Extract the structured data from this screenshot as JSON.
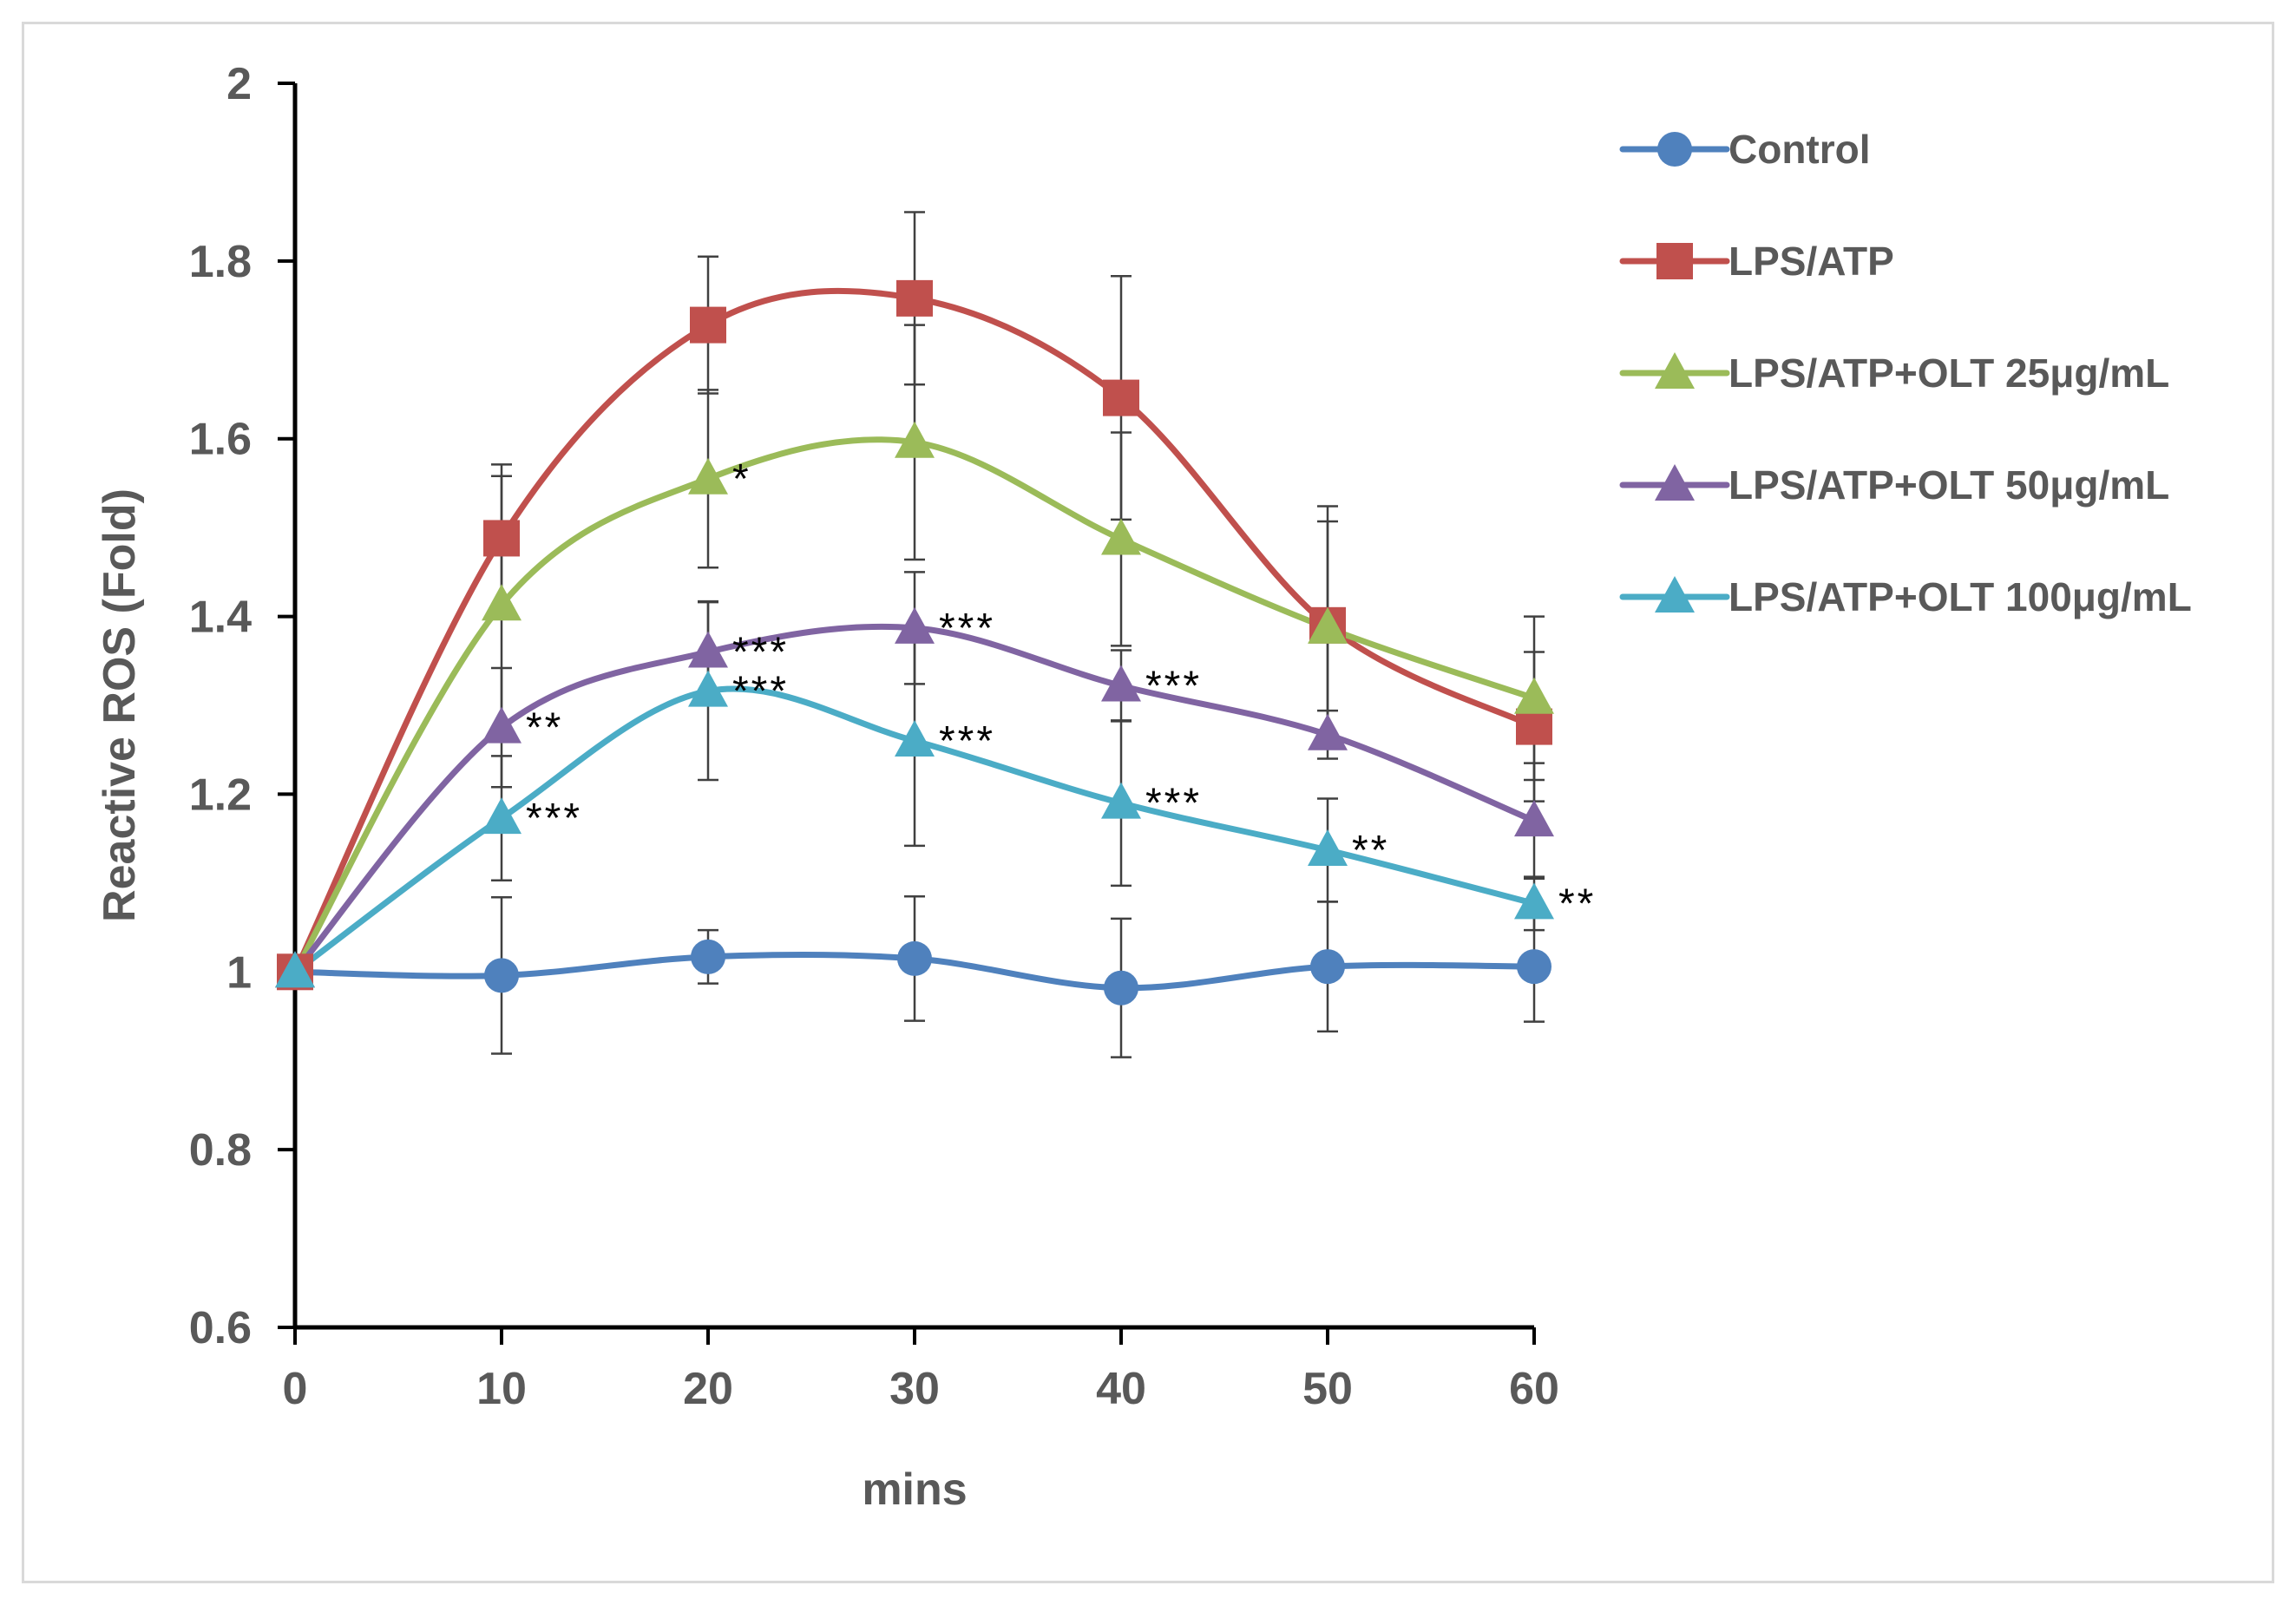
{
  "chart_data": {
    "type": "line",
    "title": "",
    "xlabel": "mins",
    "ylabel": "Reactive ROS (Fold)",
    "x": [
      0,
      10,
      20,
      30,
      40,
      50,
      60
    ],
    "xlim": [
      0,
      60
    ],
    "ylim": [
      0.6,
      2
    ],
    "yticks": [
      0.6,
      0.8,
      1,
      1.2,
      1.4,
      1.6,
      1.8,
      2
    ],
    "ytick_labels": [
      "0.6",
      "0.8",
      "1",
      "1.2",
      "1.4",
      "1.6",
      "1.8",
      "2"
    ],
    "xtick_labels": [
      "0",
      "10",
      "20",
      "30",
      "40",
      "50",
      "60"
    ],
    "grid": false,
    "legend_position": "right",
    "series": [
      {
        "name": "Control",
        "color": "#4f81bd",
        "marker": "circle",
        "values": [
          1.0,
          0.996,
          1.017,
          1.015,
          0.982,
          1.006,
          1.006
        ],
        "errors": [
          0,
          0.088,
          0.03,
          0.07,
          0.078,
          0.073,
          0.062
        ],
        "significance": [
          "",
          "",
          "",
          "",
          "",
          "",
          ""
        ]
      },
      {
        "name": "LPS/ATP",
        "color": "#c0504d",
        "marker": "square",
        "values": [
          1.0,
          1.488,
          1.728,
          1.758,
          1.646,
          1.39,
          1.276
        ],
        "errors": [
          0,
          0.083,
          0.077,
          0.097,
          0.137,
          0.134,
          0.084
        ],
        "significance": [
          "",
          "",
          "",
          "",
          "",
          "",
          ""
        ]
      },
      {
        "name": "LPS/ATP+OLT 25μg/mL",
        "color": "#9bbb59",
        "marker": "triangle",
        "values": [
          1.0,
          1.413,
          1.555,
          1.596,
          1.487,
          1.387,
          1.308
        ],
        "errors": [
          0,
          0.145,
          0.1,
          0.132,
          0.12,
          0.12,
          0.092
        ],
        "significance": [
          "",
          "",
          "*",
          "",
          "",
          "",
          ""
        ]
      },
      {
        "name": "LPS/ATP+OLT 50μg/mL",
        "color": "#8064a2",
        "marker": "triangle",
        "values": [
          1.0,
          1.275,
          1.36,
          1.387,
          1.322,
          1.267,
          1.17
        ],
        "errors": [
          0,
          0.067,
          0.057,
          0.063,
          0.04,
          0.027,
          0.065
        ],
        "significance": [
          "",
          "**",
          "***",
          "***",
          "***",
          "",
          ""
        ]
      },
      {
        "name": "LPS/ATP+OLT 100μg/mL",
        "color": "#4bacc6",
        "marker": "triangle",
        "values": [
          1.0,
          1.173,
          1.316,
          1.26,
          1.19,
          1.137,
          1.077
        ],
        "errors": [
          0,
          0.07,
          0.1,
          0.118,
          0.093,
          0.058,
          0.03
        ],
        "significance": [
          "",
          "***",
          "***",
          "***",
          "***",
          "**",
          "**"
        ]
      }
    ]
  }
}
